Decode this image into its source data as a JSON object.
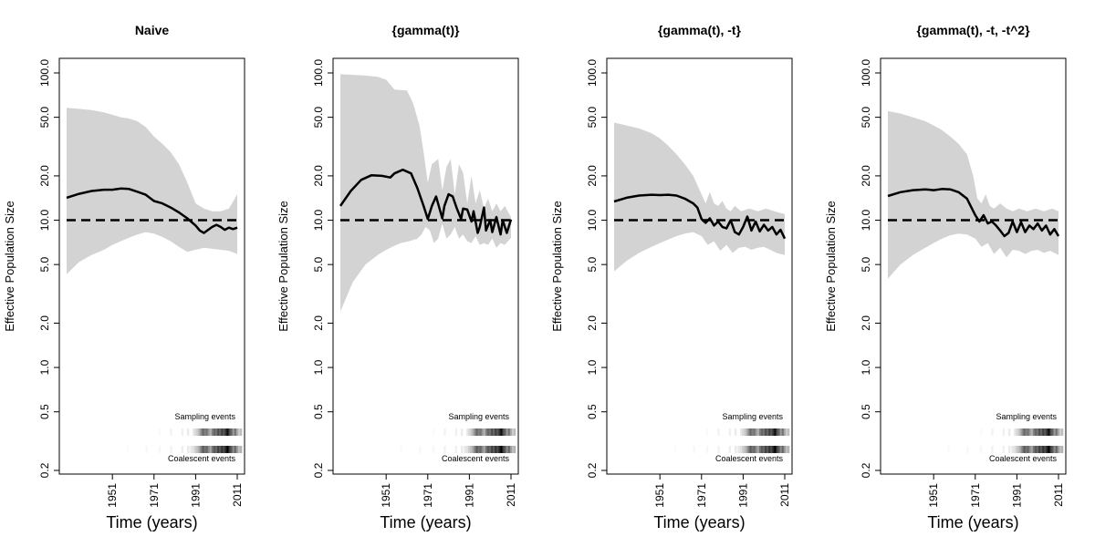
{
  "chart_data": [
    {
      "type": "area",
      "title": "Naive",
      "xlabel": "Time (years)",
      "ylabel": "Effective Population Size",
      "yscale": "log",
      "ylim": [
        0.2,
        100
      ],
      "xlim": [
        1929,
        2011
      ],
      "yticks": [
        "0.2",
        "0.5",
        "1.0",
        "2.0",
        "5.0",
        "10.0",
        "20.0",
        "50.0",
        "100.0"
      ],
      "xticks": [
        "1951",
        "1971",
        "1991",
        "2011"
      ],
      "true_value": 10,
      "series": [
        {
          "role": "median",
          "x": [
            1929,
            1935,
            1941,
            1947,
            1951,
            1955,
            1959,
            1963,
            1967,
            1971,
            1975,
            1979,
            1983,
            1987,
            1991,
            1993,
            1995,
            1997,
            1999,
            2001,
            2003,
            2005,
            2007,
            2009,
            2011
          ],
          "y": [
            14.2,
            15.1,
            15.8,
            16.1,
            16.1,
            16.4,
            16.3,
            15.6,
            14.9,
            13.5,
            13.0,
            12.2,
            11.3,
            10.3,
            9.2,
            8.5,
            8.2,
            8.6,
            9.0,
            9.3,
            9.0,
            8.6,
            8.9,
            8.7,
            8.9
          ]
        },
        {
          "role": "upper",
          "x": [
            1929,
            1935,
            1941,
            1947,
            1951,
            1955,
            1959,
            1963,
            1967,
            1971,
            1975,
            1979,
            1983,
            1987,
            1991,
            1995,
            1999,
            2003,
            2007,
            2011
          ],
          "y": [
            58,
            57,
            56,
            54,
            52,
            50,
            49,
            47,
            43,
            37,
            33,
            29,
            24,
            18,
            13,
            12,
            11.5,
            11.5,
            12,
            15
          ]
        },
        {
          "role": "lower",
          "x": [
            1929,
            1935,
            1941,
            1947,
            1951,
            1955,
            1959,
            1963,
            1967,
            1971,
            1975,
            1979,
            1983,
            1987,
            1991,
            1995,
            1999,
            2003,
            2007,
            2011
          ],
          "y": [
            4.3,
            5.2,
            5.8,
            6.3,
            6.8,
            7.2,
            7.6,
            8.0,
            8.3,
            8.1,
            7.7,
            7.2,
            6.6,
            6.1,
            6.3,
            6.5,
            6.4,
            6.3,
            6.2,
            5.9
          ]
        }
      ]
    },
    {
      "type": "area",
      "title": "{gamma(t)}",
      "xlabel": "Time (years)",
      "ylabel": "Effective Population Size",
      "yscale": "log",
      "ylim": [
        0.2,
        100
      ],
      "xlim": [
        1929,
        2011
      ],
      "yticks": [
        "0.2",
        "0.5",
        "1.0",
        "2.0",
        "5.0",
        "10.0",
        "20.0",
        "50.0",
        "100.0"
      ],
      "xticks": [
        "1951",
        "1971",
        "1991",
        "2011"
      ],
      "true_value": 10,
      "series": [
        {
          "role": "median",
          "x": [
            1929,
            1934,
            1939,
            1944,
            1949,
            1953,
            1955,
            1959,
            1963,
            1966,
            1969,
            1971,
            1973,
            1975,
            1977,
            1978,
            1979,
            1981,
            1983,
            1985,
            1987,
            1988,
            1990,
            1992,
            1993,
            1995,
            1996,
            1998,
            1999,
            2001,
            2002,
            2004,
            2006,
            2007,
            2009,
            2011
          ],
          "y": [
            12.5,
            15.8,
            18.8,
            20.2,
            20.0,
            19.5,
            20.8,
            22.0,
            20.8,
            16.5,
            12.5,
            10.2,
            12.5,
            14.5,
            11.5,
            10.3,
            12.5,
            15.0,
            14.5,
            12.0,
            10.2,
            12.0,
            11.8,
            9.8,
            11.5,
            8.2,
            9.0,
            12.2,
            8.5,
            10.0,
            8.3,
            10.5,
            8.0,
            10.0,
            8.2,
            10.1
          ]
        },
        {
          "role": "upper",
          "x": [
            1929,
            1935,
            1941,
            1947,
            1951,
            1955,
            1961,
            1964,
            1967,
            1969,
            1971,
            1973,
            1976,
            1978,
            1980,
            1982,
            1984,
            1986,
            1988,
            1990,
            1992,
            1994,
            1996,
            1998,
            2000,
            2002,
            2004,
            2006,
            2008,
            2011
          ],
          "y": [
            98,
            97,
            96,
            94,
            90,
            77,
            76,
            62,
            44,
            29,
            18,
            24,
            26,
            16,
            23,
            26,
            15,
            24,
            21,
            13,
            20,
            13,
            16,
            12,
            14,
            11.5,
            13,
            11.5,
            12.5,
            10.5
          ]
        },
        {
          "role": "lower",
          "x": [
            1929,
            1935,
            1941,
            1947,
            1951,
            1955,
            1958,
            1962,
            1966,
            1968,
            1970,
            1972,
            1974,
            1976,
            1978,
            1980,
            1982,
            1984,
            1986,
            1988,
            1990,
            1992,
            1994,
            1996,
            1998,
            2000,
            2002,
            2004,
            2006,
            2008,
            2011
          ],
          "y": [
            2.4,
            3.8,
            5.0,
            5.8,
            6.3,
            6.7,
            7.0,
            7.2,
            7.5,
            8.0,
            9.0,
            8.5,
            7.0,
            7.5,
            9.5,
            7.5,
            8.0,
            9.0,
            7.5,
            8.0,
            7.2,
            7.0,
            7.8,
            6.8,
            7.0,
            6.8,
            7.5,
            6.5,
            7.0,
            6.8,
            7.6
          ]
        }
      ]
    },
    {
      "type": "area",
      "title": "{gamma(t), -t}",
      "xlabel": "Time (years)",
      "ylabel": "Effective Population Size",
      "yscale": "log",
      "ylim": [
        0.2,
        100
      ],
      "xlim": [
        1929,
        2011
      ],
      "yticks": [
        "0.2",
        "0.5",
        "1.0",
        "2.0",
        "5.0",
        "10.0",
        "20.0",
        "50.0",
        "100.0"
      ],
      "xticks": [
        "1951",
        "1971",
        "1991",
        "2011"
      ],
      "true_value": 10,
      "series": [
        {
          "role": "median",
          "x": [
            1929,
            1935,
            1941,
            1947,
            1951,
            1955,
            1959,
            1963,
            1967,
            1969,
            1971,
            1973,
            1975,
            1977,
            1979,
            1981,
            1983,
            1985,
            1987,
            1989,
            1991,
            1993,
            1995,
            1997,
            1999,
            2001,
            2003,
            2005,
            2007,
            2009,
            2011
          ],
          "y": [
            13.4,
            14.2,
            14.7,
            14.9,
            14.8,
            14.9,
            14.7,
            14.0,
            13.0,
            12.2,
            10.2,
            9.6,
            10.3,
            9.2,
            9.8,
            9.0,
            8.8,
            10.0,
            8.3,
            8.0,
            9.0,
            10.6,
            8.5,
            9.8,
            8.4,
            9.3,
            8.5,
            9.0,
            8.0,
            8.6,
            7.5
          ]
        },
        {
          "role": "upper",
          "x": [
            1929,
            1935,
            1941,
            1947,
            1951,
            1955,
            1959,
            1963,
            1967,
            1971,
            1973,
            1975,
            1977,
            1979,
            1981,
            1983,
            1985,
            1987,
            1990,
            1994,
            1998,
            2002,
            2006,
            2011
          ],
          "y": [
            46,
            44,
            42,
            39,
            36,
            32,
            28,
            24,
            20,
            15,
            13,
            15.5,
            13,
            12.5,
            13.5,
            12,
            11.5,
            12.5,
            11.5,
            12,
            11.5,
            12,
            11.5,
            11
          ]
        },
        {
          "role": "lower",
          "x": [
            1929,
            1935,
            1941,
            1947,
            1951,
            1955,
            1959,
            1963,
            1967,
            1971,
            1974,
            1977,
            1980,
            1983,
            1986,
            1989,
            1992,
            1995,
            1998,
            2001,
            2004,
            2007,
            2011
          ],
          "y": [
            4.5,
            5.3,
            6.0,
            6.6,
            7.0,
            7.4,
            7.8,
            8.1,
            8.3,
            7.8,
            6.8,
            7.2,
            6.2,
            6.8,
            6.0,
            6.5,
            6.6,
            6.3,
            6.5,
            6.6,
            6.3,
            6.0,
            5.8
          ]
        }
      ]
    },
    {
      "type": "area",
      "title": "{gamma(t), -t, -t^2}",
      "xlabel": "Time (years)",
      "ylabel": "Effective Population Size",
      "yscale": "log",
      "ylim": [
        0.2,
        100
      ],
      "xlim": [
        1929,
        2011
      ],
      "yticks": [
        "0.2",
        "0.5",
        "1.0",
        "2.0",
        "5.0",
        "10.0",
        "20.0",
        "50.0",
        "100.0"
      ],
      "xticks": [
        "1951",
        "1971",
        "1991",
        "2011"
      ],
      "true_value": 10,
      "series": [
        {
          "role": "median",
          "x": [
            1929,
            1935,
            1941,
            1947,
            1951,
            1955,
            1959,
            1963,
            1967,
            1971,
            1973,
            1975,
            1977,
            1979,
            1981,
            1983,
            1985,
            1987,
            1989,
            1991,
            1993,
            1995,
            1997,
            1999,
            2001,
            2003,
            2005,
            2007,
            2009,
            2011
          ],
          "y": [
            14.6,
            15.5,
            16.0,
            16.2,
            16.0,
            16.3,
            16.2,
            15.5,
            14.0,
            10.8,
            9.8,
            10.8,
            9.5,
            9.8,
            9.2,
            8.5,
            7.8,
            8.2,
            9.8,
            8.3,
            9.7,
            8.3,
            9.2,
            8.7,
            9.5,
            8.5,
            9.2,
            8.0,
            8.7,
            7.8
          ]
        },
        {
          "role": "upper",
          "x": [
            1929,
            1935,
            1941,
            1947,
            1951,
            1955,
            1959,
            1963,
            1967,
            1970,
            1972,
            1974,
            1976,
            1978,
            1980,
            1983,
            1986,
            1989,
            1992,
            1996,
            2000,
            2004,
            2008,
            2011
          ],
          "y": [
            55,
            53,
            50,
            47,
            44,
            41,
            37,
            33,
            28,
            20,
            14,
            13,
            15,
            12.5,
            12,
            13,
            12,
            11.5,
            12,
            11.5,
            12,
            11.5,
            12,
            11.5
          ]
        },
        {
          "role": "lower",
          "x": [
            1929,
            1935,
            1941,
            1947,
            1951,
            1955,
            1959,
            1963,
            1967,
            1971,
            1974,
            1977,
            1980,
            1983,
            1986,
            1989,
            1992,
            1995,
            1998,
            2001,
            2004,
            2007,
            2011
          ],
          "y": [
            4.0,
            5.0,
            5.8,
            6.5,
            7.0,
            7.5,
            7.9,
            8.1,
            8.0,
            7.5,
            6.6,
            7.0,
            5.9,
            6.5,
            5.6,
            6.3,
            6.2,
            5.9,
            6.2,
            6.3,
            6.0,
            6.2,
            5.8
          ]
        }
      ]
    }
  ],
  "strip": {
    "sampling_label": "Sampling events",
    "coalescent_label": "Coalescent events",
    "sampling_heat": [
      0,
      0,
      0,
      0,
      0,
      0,
      0,
      0,
      0,
      0,
      0,
      0,
      0,
      0,
      0,
      0,
      0,
      0,
      0,
      0,
      0,
      0,
      0,
      0,
      0,
      0,
      0.02,
      0,
      0,
      0,
      0,
      0,
      0.05,
      0,
      0,
      0,
      0,
      0,
      0.06,
      0,
      0,
      0.08,
      0,
      0,
      0.1,
      0.15,
      0.2,
      0.3,
      0.45,
      0.6,
      0.5,
      0.55,
      0.4,
      0.3,
      0.5,
      0.6,
      0.55,
      0.7,
      0.6,
      0.75,
      0.65,
      0.8,
      0.95,
      0.7,
      0.6,
      0.4,
      0.55,
      0.35,
      0.2,
      0.25
    ],
    "coalescent_heat": [
      0,
      0,
      0,
      0,
      0,
      0,
      0,
      0,
      0,
      0.02,
      0,
      0,
      0,
      0,
      0,
      0,
      0,
      0,
      0,
      0.03,
      0,
      0,
      0,
      0,
      0,
      0,
      0.03,
      0,
      0,
      0,
      0,
      0,
      0.05,
      0,
      0,
      0,
      0,
      0,
      0.06,
      0,
      0,
      0.08,
      0.05,
      0.1,
      0.12,
      0.2,
      0.25,
      0.35,
      0.5,
      0.65,
      0.55,
      0.6,
      0.45,
      0.35,
      0.55,
      0.65,
      0.6,
      0.75,
      0.65,
      0.8,
      0.7,
      0.85,
      1.0,
      0.75,
      0.65,
      0.45,
      0.6,
      0.4,
      0.25,
      0.3
    ]
  }
}
